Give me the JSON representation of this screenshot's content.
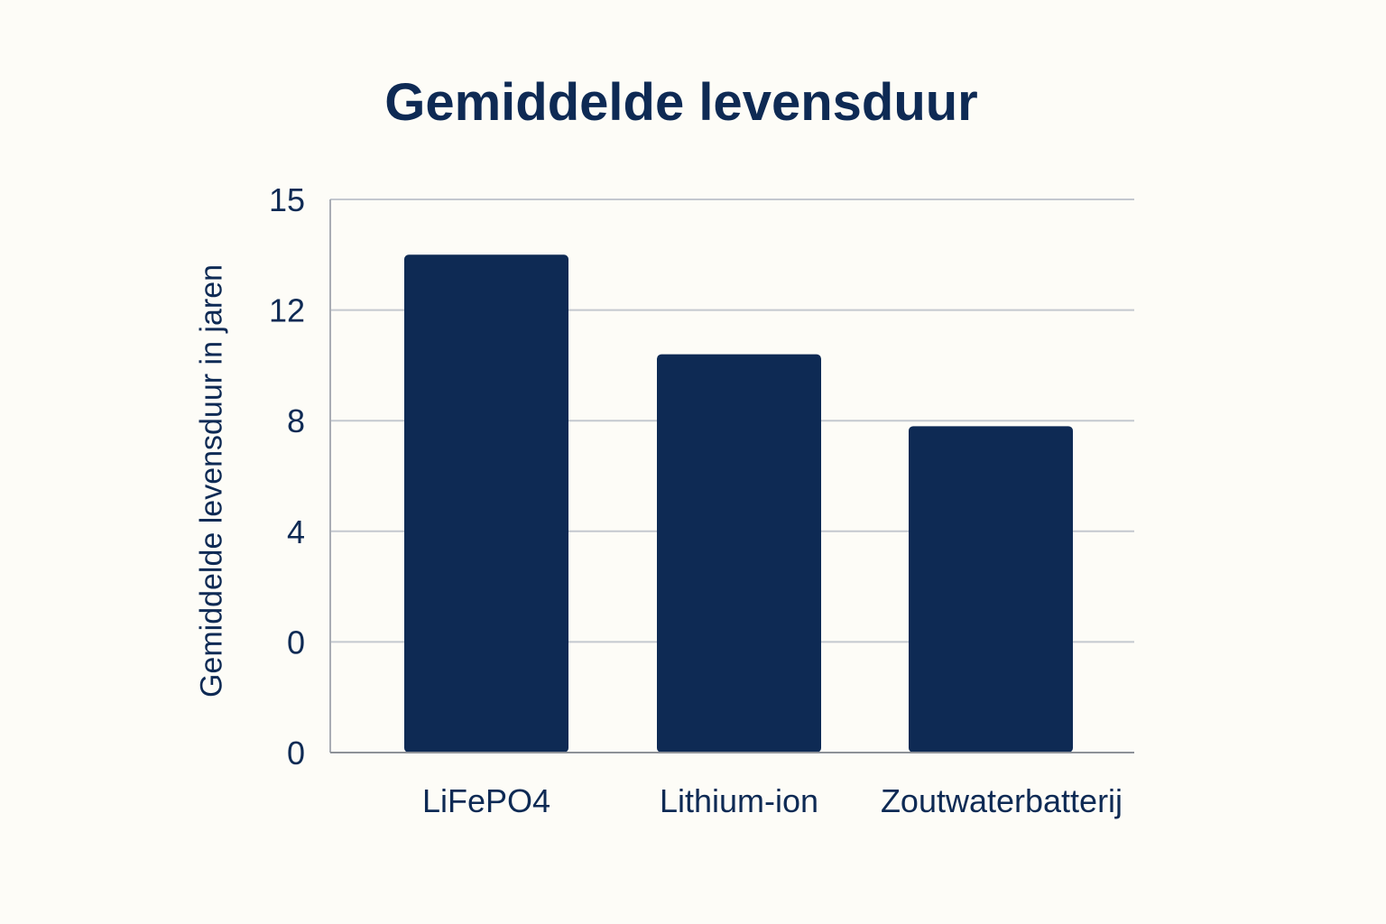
{
  "chart_data": {
    "type": "bar",
    "title": "Gemiddelde levensduur",
    "xlabel": "",
    "ylabel": "Gemiddelde levensduur in jaren",
    "categories": [
      "LiFePO4",
      "Lithium-ion",
      "Zoutwaterbatterij"
    ],
    "values": [
      13.5,
      10.4,
      7.8
    ],
    "y_tick_labels": [
      "0",
      "0",
      "4",
      "8",
      "12",
      "15"
    ],
    "ylim": [
      0,
      15
    ],
    "grid": true,
    "bar_color": "#0e2a54",
    "text_color": "#0e2a54",
    "background": "#fdfcf7"
  }
}
